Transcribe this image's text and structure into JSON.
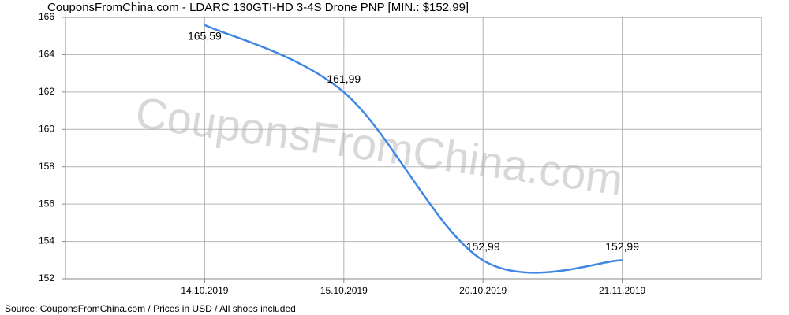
{
  "chart_data": {
    "type": "line",
    "title": "CouponsFromChina.com - LDARC 130GTI-HD 3-4S Drone PNP [MIN.: $152.99]",
    "source": "Source: CouponsFromChina.com / Prices in USD / All shops included",
    "watermark": "CouponsFromChina.com",
    "categories": [
      "14.10.2019",
      "15.10.2019",
      "20.10.2019",
      "21.11.2019"
    ],
    "values": [
      165.59,
      161.99,
      152.99,
      152.99
    ],
    "value_labels": [
      "165,59",
      "161,99",
      "152,99",
      "152,99"
    ],
    "color": "#3f87e3",
    "ylim": [
      152,
      166
    ],
    "yticks": [
      152,
      154,
      156,
      158,
      160,
      162,
      164,
      166
    ],
    "grid": true
  }
}
